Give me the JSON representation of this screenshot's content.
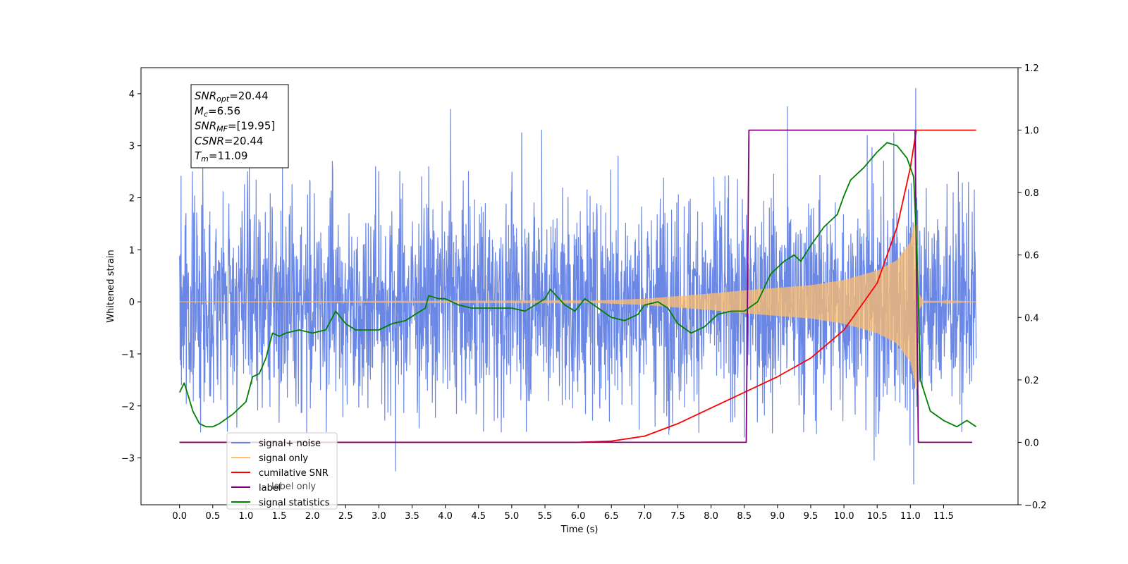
{
  "chart_data": {
    "type": "line",
    "xlabel": "Time (s)",
    "ylabel": "Whitened strain",
    "xlim": [
      -0.58,
      12.62
    ],
    "ylim": [
      -3.9,
      4.5
    ],
    "y2lim": [
      -0.2,
      1.2
    ],
    "x_ticks": [
      "0.0",
      "0.5",
      "1.0",
      "1.5",
      "2.0",
      "2.5",
      "3.0",
      "3.5",
      "4.0",
      "4.5",
      "5.0",
      "5.5",
      "6.0",
      "6.5",
      "7.0",
      "7.5",
      "8.0",
      "8.5",
      "9.0",
      "9.5",
      "10.0",
      "10.5",
      "11.0",
      "11.5"
    ],
    "y_ticks": [
      "−3",
      "−2",
      "−1",
      "0",
      "1",
      "2",
      "3",
      "4"
    ],
    "y2_ticks": [
      "−0.2",
      "0.0",
      "0.2",
      "0.4",
      "0.6",
      "0.8",
      "1.0",
      "1.2"
    ],
    "annotation": [
      {
        "main": "SNR",
        "sub": "opt",
        "rest": "=20.44"
      },
      {
        "main": "M",
        "sub": "c",
        "rest": "=6.56"
      },
      {
        "main": "SNR",
        "sub": "MF",
        "rest": "=[19.95]"
      },
      {
        "main": "CSNR",
        "sub": "",
        "rest": "=20.44"
      },
      {
        "main": "T",
        "sub": "m",
        "rest": "=11.09"
      }
    ],
    "legend": {
      "placement": "lower-left",
      "entries": [
        {
          "label": "signal+ noise",
          "color": "#6a87e6"
        },
        {
          "label": "signal only",
          "color": "#ffbe6a"
        },
        {
          "label": "cumilative SNR",
          "color": "#ff0000"
        },
        {
          "label": "label",
          "color": "#800080"
        },
        {
          "label": "signal statistics",
          "color": "#008000"
        }
      ],
      "hidden_text": "label only"
    },
    "series": [
      {
        "name": "signal+ noise",
        "axis": "left",
        "color": "#6a87e6",
        "style": "noise",
        "x_range": [
          0.0,
          11.99
        ],
        "approx_std": 1.0,
        "peaks": [
          [
            0.35,
            2.6
          ],
          [
            1.05,
            2.6
          ],
          [
            1.55,
            2.6
          ],
          [
            2.3,
            2.7
          ],
          [
            2.95,
            2.6
          ],
          [
            3.25,
            -3.25
          ],
          [
            3.75,
            2.6
          ],
          [
            4.08,
            3.7
          ],
          [
            5.15,
            3.25
          ],
          [
            5.45,
            3.3
          ],
          [
            6.6,
            2.8
          ],
          [
            8.5,
            -2.6
          ],
          [
            9.15,
            3.75
          ],
          [
            10.35,
            3.2
          ],
          [
            10.75,
            3.25
          ],
          [
            11.08,
            4.1
          ],
          [
            11.05,
            -3.5
          ]
        ]
      },
      {
        "name": "signal only",
        "axis": "left",
        "color": "#ffbe6a",
        "style": "chirp",
        "x_range": [
          0.0,
          11.99
        ],
        "merger_time": 11.09,
        "envelope": [
          [
            0.0,
            0.0
          ],
          [
            6.0,
            0.01
          ],
          [
            7.0,
            0.06
          ],
          [
            8.0,
            0.16
          ],
          [
            8.5,
            0.22
          ],
          [
            9.5,
            0.32
          ],
          [
            10.0,
            0.42
          ],
          [
            10.5,
            0.6
          ],
          [
            10.8,
            0.8
          ],
          [
            11.0,
            1.15
          ],
          [
            11.09,
            1.7
          ],
          [
            11.13,
            0.15
          ],
          [
            11.2,
            0.02
          ],
          [
            11.99,
            0.0
          ]
        ]
      },
      {
        "name": "cumilative SNR",
        "axis": "right",
        "color": "#ff0000",
        "style": "line",
        "points": [
          [
            0.0,
            0.0
          ],
          [
            6.0,
            0.0
          ],
          [
            6.5,
            0.004
          ],
          [
            7.0,
            0.02
          ],
          [
            7.5,
            0.06
          ],
          [
            8.0,
            0.11
          ],
          [
            8.5,
            0.16
          ],
          [
            9.0,
            0.21
          ],
          [
            9.5,
            0.27
          ],
          [
            10.0,
            0.36
          ],
          [
            10.5,
            0.51
          ],
          [
            10.8,
            0.69
          ],
          [
            11.0,
            0.88
          ],
          [
            11.09,
            1.0
          ],
          [
            11.99,
            1.0
          ]
        ]
      },
      {
        "name": "label",
        "axis": "right",
        "color": "#800080",
        "style": "line",
        "points": [
          [
            0.0,
            0.0
          ],
          [
            8.53,
            0.0
          ],
          [
            8.57,
            1.0
          ],
          [
            11.07,
            1.0
          ],
          [
            11.12,
            0.0
          ],
          [
            11.93,
            0.0
          ]
        ]
      },
      {
        "name": "signal statistics",
        "axis": "right",
        "color": "#008000",
        "style": "line",
        "points": [
          [
            0.0,
            0.16
          ],
          [
            0.07,
            0.19
          ],
          [
            0.13,
            0.15
          ],
          [
            0.2,
            0.1
          ],
          [
            0.3,
            0.06
          ],
          [
            0.4,
            0.05
          ],
          [
            0.5,
            0.05
          ],
          [
            0.6,
            0.06
          ],
          [
            0.8,
            0.09
          ],
          [
            1.0,
            0.13
          ],
          [
            1.1,
            0.21
          ],
          [
            1.2,
            0.22
          ],
          [
            1.3,
            0.27
          ],
          [
            1.4,
            0.35
          ],
          [
            1.5,
            0.34
          ],
          [
            1.6,
            0.35
          ],
          [
            1.8,
            0.36
          ],
          [
            2.0,
            0.35
          ],
          [
            2.2,
            0.36
          ],
          [
            2.3,
            0.4
          ],
          [
            2.35,
            0.42
          ],
          [
            2.5,
            0.38
          ],
          [
            2.65,
            0.36
          ],
          [
            2.8,
            0.36
          ],
          [
            3.0,
            0.36
          ],
          [
            3.2,
            0.38
          ],
          [
            3.4,
            0.39
          ],
          [
            3.55,
            0.41
          ],
          [
            3.7,
            0.43
          ],
          [
            3.75,
            0.47
          ],
          [
            3.9,
            0.46
          ],
          [
            4.0,
            0.46
          ],
          [
            4.2,
            0.44
          ],
          [
            4.4,
            0.43
          ],
          [
            4.6,
            0.43
          ],
          [
            4.8,
            0.43
          ],
          [
            5.0,
            0.43
          ],
          [
            5.2,
            0.42
          ],
          [
            5.35,
            0.44
          ],
          [
            5.5,
            0.46
          ],
          [
            5.58,
            0.49
          ],
          [
            5.8,
            0.44
          ],
          [
            5.95,
            0.42
          ],
          [
            6.1,
            0.46
          ],
          [
            6.3,
            0.43
          ],
          [
            6.5,
            0.4
          ],
          [
            6.7,
            0.39
          ],
          [
            6.9,
            0.41
          ],
          [
            7.0,
            0.44
          ],
          [
            7.2,
            0.45
          ],
          [
            7.35,
            0.43
          ],
          [
            7.5,
            0.38
          ],
          [
            7.7,
            0.35
          ],
          [
            7.9,
            0.37
          ],
          [
            8.1,
            0.41
          ],
          [
            8.3,
            0.42
          ],
          [
            8.5,
            0.42
          ],
          [
            8.7,
            0.45
          ],
          [
            8.9,
            0.54
          ],
          [
            9.1,
            0.58
          ],
          [
            9.25,
            0.6
          ],
          [
            9.35,
            0.58
          ],
          [
            9.5,
            0.63
          ],
          [
            9.7,
            0.69
          ],
          [
            9.9,
            0.73
          ],
          [
            10.0,
            0.79
          ],
          [
            10.1,
            0.84
          ],
          [
            10.3,
            0.88
          ],
          [
            10.5,
            0.93
          ],
          [
            10.65,
            0.96
          ],
          [
            10.8,
            0.95
          ],
          [
            10.95,
            0.91
          ],
          [
            11.05,
            0.85
          ],
          [
            11.1,
            0.6
          ],
          [
            11.15,
            0.2
          ],
          [
            11.3,
            0.1
          ],
          [
            11.5,
            0.07
          ],
          [
            11.7,
            0.05
          ],
          [
            11.85,
            0.07
          ],
          [
            11.99,
            0.05
          ]
        ]
      }
    ]
  }
}
